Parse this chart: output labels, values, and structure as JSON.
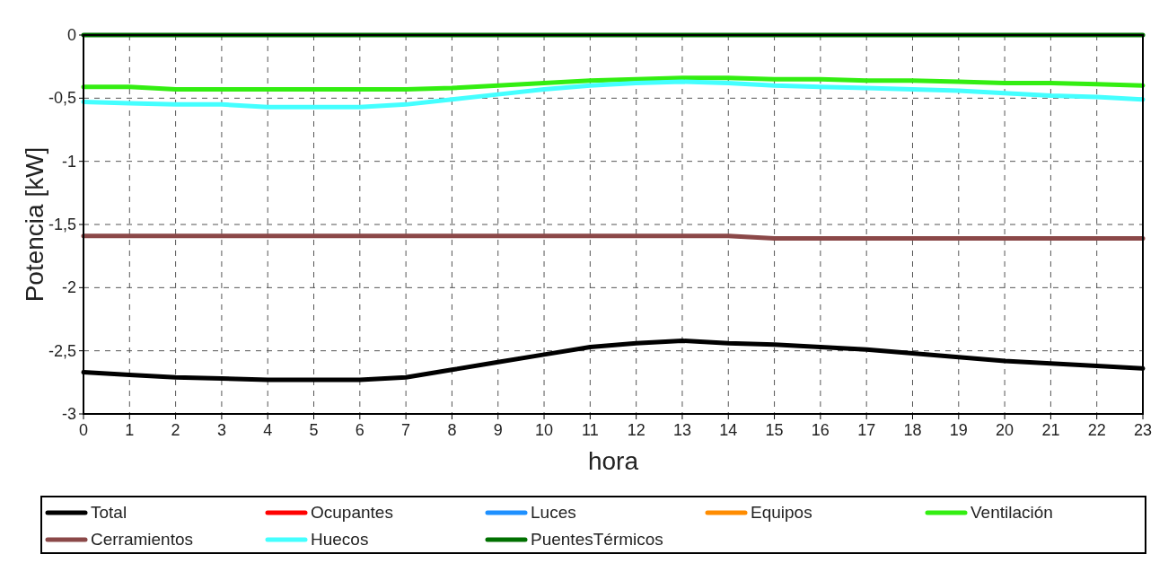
{
  "chart_data": {
    "type": "line",
    "xlabel": "hora",
    "ylabel": "Potencia [kW]",
    "x": [
      0,
      1,
      2,
      3,
      4,
      5,
      6,
      7,
      8,
      9,
      10,
      11,
      12,
      13,
      14,
      15,
      16,
      17,
      18,
      19,
      20,
      21,
      22,
      23
    ],
    "xlim": [
      0,
      23
    ],
    "xticks": [
      0,
      1,
      2,
      3,
      4,
      5,
      6,
      7,
      8,
      9,
      10,
      11,
      12,
      13,
      14,
      15,
      16,
      17,
      18,
      19,
      20,
      21,
      22,
      23
    ],
    "ylim": [
      -3,
      0
    ],
    "yticks": [
      {
        "value": -3,
        "label": "-3"
      },
      {
        "value": -2.5,
        "label": "-2,5"
      },
      {
        "value": -2,
        "label": "-2"
      },
      {
        "value": -1.5,
        "label": "-1,5"
      },
      {
        "value": -1,
        "label": "-1"
      },
      {
        "value": -0.5,
        "label": "-0,5"
      },
      {
        "value": 0,
        "label": "0"
      }
    ],
    "grid": true,
    "legend": "bottom",
    "line_style": "solid",
    "marker": "none",
    "series": [
      {
        "name": "Total",
        "color": "#000000",
        "values": [
          -2.67,
          -2.69,
          -2.71,
          -2.72,
          -2.73,
          -2.73,
          -2.73,
          -2.71,
          -2.65,
          -2.59,
          -2.53,
          -2.47,
          -2.44,
          -2.42,
          -2.44,
          -2.45,
          -2.47,
          -2.49,
          -2.52,
          -2.55,
          -2.58,
          -2.6,
          -2.62,
          -2.64
        ]
      },
      {
        "name": "Ocupantes",
        "color": "#ff0000",
        "values": [
          null,
          null,
          null,
          null,
          null,
          null,
          null,
          null,
          null,
          null,
          null,
          null,
          null,
          null,
          null,
          null,
          null,
          null,
          null,
          null,
          null,
          null,
          null,
          null
        ]
      },
      {
        "name": "Luces",
        "color": "#1e90ff",
        "values": [
          null,
          null,
          null,
          null,
          null,
          null,
          null,
          null,
          null,
          null,
          null,
          null,
          null,
          null,
          null,
          null,
          null,
          null,
          null,
          null,
          null,
          null,
          null,
          null
        ]
      },
      {
        "name": "Equipos",
        "color": "#ff8c00",
        "values": [
          null,
          null,
          null,
          null,
          null,
          null,
          null,
          null,
          null,
          null,
          null,
          null,
          null,
          null,
          null,
          null,
          null,
          null,
          null,
          null,
          null,
          null,
          null,
          null
        ]
      },
      {
        "name": "Ventilación",
        "color": "#33ee11",
        "values": [
          -0.41,
          -0.41,
          -0.43,
          -0.43,
          -0.43,
          -0.43,
          -0.43,
          -0.43,
          -0.42,
          -0.4,
          -0.38,
          -0.36,
          -0.35,
          -0.34,
          -0.34,
          -0.35,
          -0.35,
          -0.36,
          -0.36,
          -0.37,
          -0.38,
          -0.38,
          -0.39,
          -0.4
        ]
      },
      {
        "name": "Cerramientos",
        "color": "#8b4848",
        "values": [
          -1.59,
          -1.59,
          -1.59,
          -1.59,
          -1.59,
          -1.59,
          -1.59,
          -1.59,
          -1.59,
          -1.59,
          -1.59,
          -1.59,
          -1.59,
          -1.59,
          -1.59,
          -1.61,
          -1.61,
          -1.61,
          -1.61,
          -1.61,
          -1.61,
          -1.61,
          -1.61,
          -1.61
        ]
      },
      {
        "name": "Huecos",
        "color": "#44ffff",
        "values": [
          -0.53,
          -0.54,
          -0.55,
          -0.55,
          -0.57,
          -0.57,
          -0.57,
          -0.55,
          -0.51,
          -0.47,
          -0.43,
          -0.4,
          -0.38,
          -0.37,
          -0.38,
          -0.4,
          -0.41,
          -0.42,
          -0.43,
          -0.44,
          -0.46,
          -0.48,
          -0.49,
          -0.51
        ]
      },
      {
        "name": "PuentesTérmicos",
        "color": "#007000",
        "values": [
          0,
          0,
          0,
          0,
          0,
          0,
          0,
          0,
          0,
          0,
          0,
          0,
          0,
          0,
          0,
          0,
          0,
          0,
          0,
          0,
          0,
          0,
          0,
          0
        ]
      }
    ]
  }
}
